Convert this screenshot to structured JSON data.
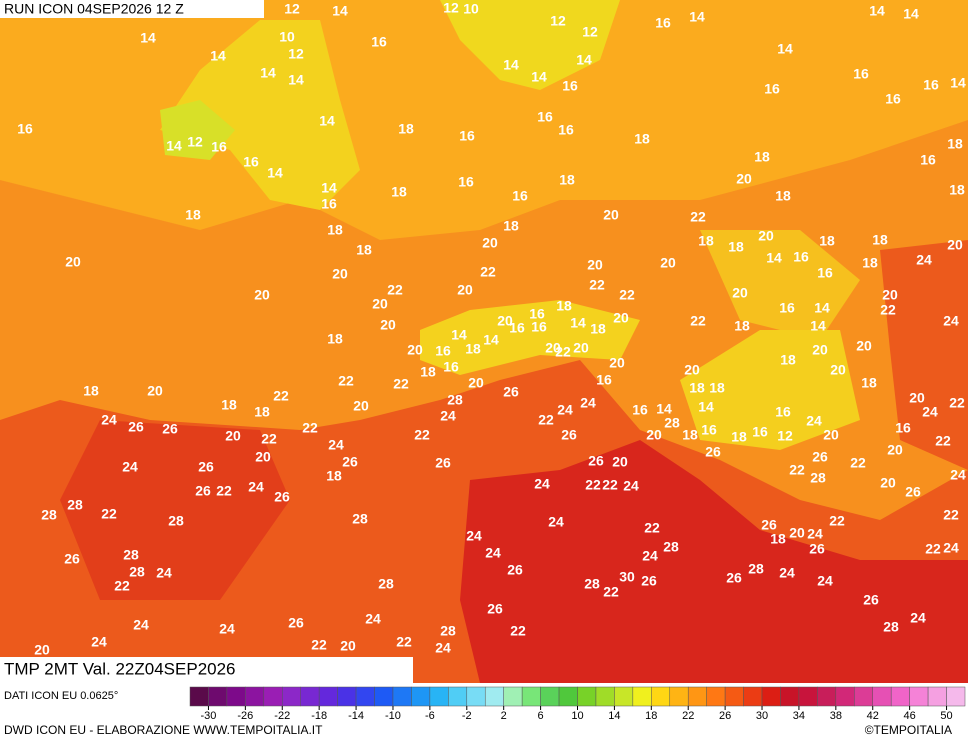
{
  "header": {
    "run": "RUN ICON 04SEP2026 12 Z"
  },
  "footer": {
    "variable": "TMP 2MT Val. 22Z04SEP2026",
    "source": "DATI ICON EU 0.0625°",
    "credit": "DWD ICON EU - ELABORAZIONE WWW.TEMPOITALIA.IT",
    "logo": "©TEMPOITALIA"
  },
  "colorbar": {
    "colors": [
      "#5a0a4a",
      "#6e0a6e",
      "#7d0a8a",
      "#8c14a0",
      "#9a1eb4",
      "#8c28c8",
      "#7828d2",
      "#6428dc",
      "#4a32e6",
      "#3246f0",
      "#1e5af5",
      "#1e78f5",
      "#1e96f5",
      "#28b4f5",
      "#50cdf5",
      "#78dcf5",
      "#a0ebf0",
      "#a0f0b4",
      "#78e678",
      "#5ad25a",
      "#50c83c",
      "#78d228",
      "#a0dc28",
      "#c8e628",
      "#f0f01e",
      "#ffd714",
      "#ffb414",
      "#ff9614",
      "#ff7814",
      "#f55a14",
      "#eb3c14",
      "#dc1e14",
      "#c81428",
      "#c8143c",
      "#c81e5a",
      "#d22878",
      "#dc3c96",
      "#e650b4",
      "#f064c8",
      "#f582d7",
      "#f5a0e1",
      "#f5b9eb"
    ],
    "ticks": [
      -30,
      -26,
      -22,
      -18,
      -14,
      -10,
      -6,
      -2,
      2,
      6,
      10,
      14,
      18,
      22,
      26,
      30,
      34,
      38,
      42,
      46,
      50
    ]
  },
  "labels": [
    12,
    14,
    12,
    10,
    12,
    12,
    16,
    14,
    14,
    14,
    14,
    10,
    16,
    12,
    14,
    14,
    14,
    14,
    14,
    14,
    16,
    14,
    16,
    16,
    16,
    14,
    16,
    16,
    14,
    12,
    16,
    14,
    18,
    16,
    16,
    16,
    18,
    16,
    14,
    18,
    16,
    18,
    16,
    14,
    16,
    18,
    16,
    18,
    20,
    18,
    18,
    18,
    20,
    22,
    18,
    18,
    18,
    18,
    20,
    18,
    18,
    20,
    20,
    18,
    20,
    20,
    22,
    20,
    20,
    14,
    16,
    16,
    18,
    24,
    20,
    22,
    20,
    22,
    22,
    20,
    20,
    20,
    18,
    16,
    14,
    18,
    20,
    20,
    20,
    14,
    18,
    14,
    16,
    16,
    22,
    22,
    18,
    16,
    14,
    14,
    24,
    18,
    20,
    16,
    16,
    18,
    20,
    22,
    20,
    20,
    18,
    20,
    20,
    20,
    22,
    22,
    20,
    26,
    16,
    18,
    18,
    20,
    18,
    18,
    20,
    18,
    18,
    22,
    20,
    28,
    24,
    24,
    16,
    14,
    14,
    16,
    24,
    20,
    24,
    22,
    24,
    26,
    26,
    22,
    22,
    24,
    22,
    22,
    28,
    20,
    18,
    16,
    18,
    16,
    12,
    20,
    16,
    22,
    20,
    24,
    26,
    26,
    20,
    26,
    26,
    24,
    26,
    18,
    26,
    20,
    26,
    22,
    20,
    24,
    22,
    28,
    26,
    22,
    24,
    26,
    24,
    22,
    22,
    24,
    20,
    26,
    28,
    22,
    28,
    28,
    28,
    24,
    26,
    22,
    22,
    24,
    22,
    18,
    20,
    24,
    26,
    22,
    24,
    28,
    24,
    28,
    26,
    28,
    24,
    24,
    28,
    24,
    26,
    22,
    28,
    28,
    30,
    22,
    26,
    26,
    24,
    26,
    26,
    24,
    24,
    26,
    24,
    28,
    24,
    22,
    24,
    20,
    22,
    20,
    22,
    28,
    24
  ]
}
